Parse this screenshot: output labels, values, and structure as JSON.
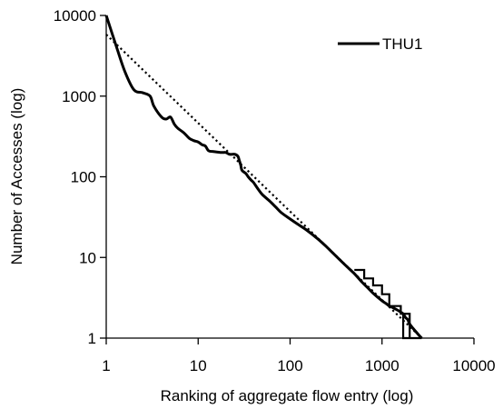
{
  "chart_data": {
    "type": "line",
    "title": "",
    "xlabel": "Ranking of aggregate flow entry (log)",
    "ylabel": "Number of Accesses  (log)",
    "xscale": "log",
    "yscale": "log",
    "xlim": [
      1,
      10000
    ],
    "ylim": [
      1,
      10000
    ],
    "x_ticks": [
      1,
      10,
      100,
      1000,
      10000
    ],
    "x_tick_labels": [
      "1",
      "10",
      "100",
      "1000",
      "10000"
    ],
    "y_ticks": [
      1,
      10,
      100,
      1000,
      10000
    ],
    "y_tick_labels": [
      "1",
      "10",
      "100",
      "1000",
      "10000"
    ],
    "grid": false,
    "legend_position": "top-right",
    "series": [
      {
        "name": "THU1",
        "style": "solid",
        "color": "#000000",
        "x": [
          1,
          1.3,
          1.6,
          2,
          2.5,
          3,
          3.3,
          4,
          4.5,
          5,
          5.5,
          6,
          7,
          8,
          9,
          10,
          11,
          12,
          13,
          15,
          18,
          20,
          22,
          25,
          27,
          28,
          29,
          30,
          33,
          35,
          38,
          40,
          45,
          50,
          60,
          70,
          80,
          100,
          120,
          150,
          200,
          250,
          300,
          400,
          500,
          600,
          700,
          800,
          1000,
          1100,
          1200,
          1300,
          1400,
          1500,
          1600,
          1700,
          1800,
          1900,
          2000,
          2200,
          2500,
          2700
        ],
        "y": [
          10000,
          4000,
          2000,
          1200,
          1100,
          1000,
          750,
          550,
          520,
          550,
          450,
          400,
          350,
          300,
          280,
          270,
          250,
          240,
          210,
          205,
          200,
          200,
          190,
          190,
          180,
          160,
          140,
          120,
          110,
          100,
          90,
          85,
          70,
          60,
          50,
          42,
          36,
          30,
          26,
          22,
          17,
          13.5,
          11,
          8,
          6.3,
          5,
          4.2,
          3.6,
          2.9,
          2.7,
          2.5,
          2.4,
          2.3,
          2.2,
          2.1,
          2,
          1.8,
          1.7,
          1.5,
          1.3,
          1.1,
          1
        ]
      },
      {
        "name": "",
        "style": "dotted",
        "color": "#000000",
        "x": [
          1,
          2700
        ],
        "y": [
          5800,
          1
        ]
      }
    ],
    "step_overlay": {
      "x": [
        500,
        640,
        640,
        800,
        800,
        1000,
        1000,
        1200,
        1200,
        1600,
        1600,
        2000,
        2000,
        2700,
        1700,
        1700
      ],
      "y": [
        7,
        7,
        5.5,
        5.5,
        4.5,
        4.5,
        3.5,
        3.5,
        2.5,
        2.5,
        2,
        2,
        1,
        1,
        1,
        2
      ]
    }
  }
}
